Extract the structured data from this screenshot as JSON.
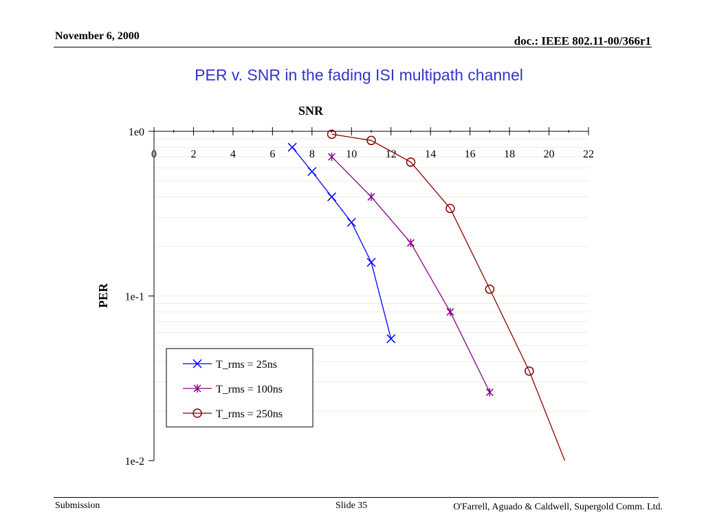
{
  "header": {
    "date": "November 6, 2000",
    "doc": "doc.: IEEE 802.11-00/366r1"
  },
  "slide_title": "PER v. SNR in the fading ISI multipath channel",
  "footer": {
    "left": "Submission",
    "center": "Slide 35",
    "right": "O'Farrell, Aguado & Caldwell, Supergold Comm. Ltd."
  },
  "colors": {
    "title": "#3333cc",
    "series_25": "#0000ff",
    "series_100": "#880088",
    "series_250": "#880000",
    "grid": "#eeeedd"
  },
  "chart_data": {
    "type": "line",
    "xlabel": "SNR",
    "ylabel": "PER",
    "xlim": [
      0,
      22
    ],
    "ylim": [
      0.01,
      1
    ],
    "y_scale": "log",
    "x_axis_position": "top",
    "x_ticks": [
      0,
      2,
      4,
      6,
      8,
      10,
      12,
      14,
      16,
      18,
      20,
      22
    ],
    "x_tick_labels": [
      "0",
      "2",
      "4",
      "6",
      "8",
      "10",
      "12",
      "14",
      "16",
      "18",
      "20",
      "22"
    ],
    "y_ticks": [
      1,
      0.1,
      0.01
    ],
    "y_tick_labels": [
      "1e0",
      "1e-1",
      "1e-2"
    ],
    "grid": true,
    "legend": "bottom-left",
    "series": [
      {
        "name": "T_rms = 25ns",
        "marker": "x",
        "color": "#0000ff",
        "x": [
          7,
          8,
          9,
          10,
          11,
          12
        ],
        "y": [
          0.8,
          0.57,
          0.4,
          0.28,
          0.16,
          0.055
        ]
      },
      {
        "name": "T_rms = 100ns",
        "marker": "asterisk",
        "color": "#880088",
        "x": [
          9,
          11,
          13,
          15,
          17
        ],
        "y": [
          0.7,
          0.4,
          0.21,
          0.08,
          0.026
        ]
      },
      {
        "name": "T_rms = 250ns",
        "marker": "circle",
        "color": "#880000",
        "x": [
          9,
          11,
          13,
          15,
          17,
          19,
          20.8
        ],
        "y": [
          0.96,
          0.88,
          0.65,
          0.34,
          0.11,
          0.035,
          0.01
        ]
      }
    ]
  }
}
